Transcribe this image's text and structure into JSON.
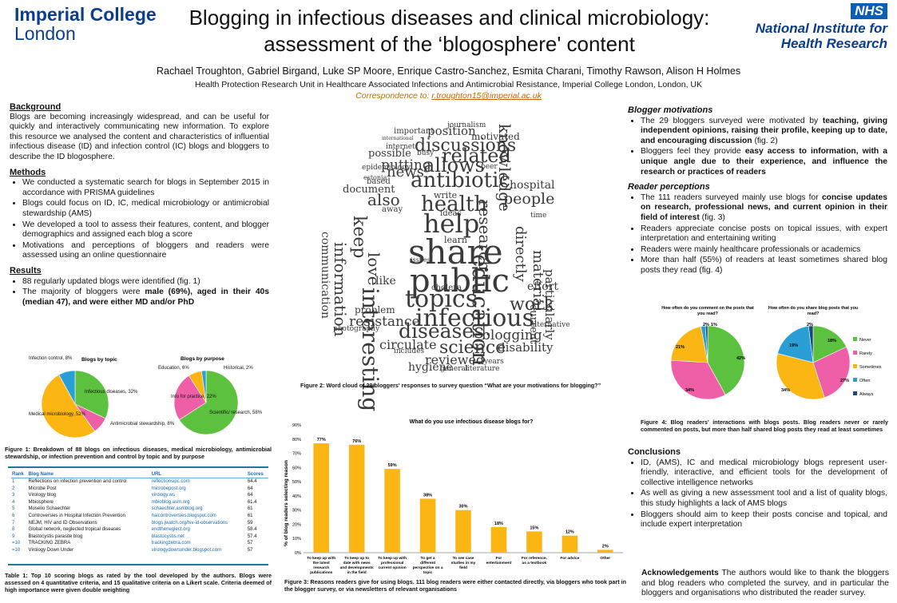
{
  "header": {
    "ic_line1": "Imperial College",
    "ic_line2": "London",
    "title_line1": "Blogging in infectious diseases and clinical microbiology:",
    "title_line2": "assessment of the ‘blogosphere' content",
    "nhs": "NHS",
    "nihr_line1": "National Institute for",
    "nihr_line2": "Health Research",
    "authors": "Rachael Troughton, Gabriel Birgand, Luke SP Moore, Enrique Castro-Sanchez, Esmita Charani, Timothy Rawson, Alison H Holmes",
    "affiliation": "Health Protection Research Unit in Healthcare Associated Infections and Antimicrobial Resistance, Imperial College London, London, UK",
    "corr_label": "Correspondence to: ",
    "corr_email": "r.troughton15@imperial.ac.uk"
  },
  "left": {
    "background_h": "Background",
    "background_p": "Blogs are becoming increasingly widespread, and can be useful for quickly and interactively communicating new information. To explore this resource we analysed the content and characteristics of influential infectious disease (ID) and infection control (IC) blogs and bloggers to describe the ID blogosphere.",
    "methods_h": "Methods",
    "methods": [
      "We conducted a systematic search for blogs in September 2015 in accordance with PRISMA guidelines",
      "Blogs could focus on ID, IC, medical microbiology or antimicrobial stewardship (AMS)",
      "We developed a tool to assess their features, content, and blogger demographics and assigned each blog a score",
      "Motivations and perceptions of bloggers and readers were assessed using an online questionnaire"
    ],
    "results_h": "Results",
    "results1": "88 regularly updated blogs were identified (fig. 1)",
    "results2_a": "The majority of bloggers were ",
    "results2_b": "male (69%), aged in their 40s (median 47), and were either MD and/or PhD"
  },
  "fig1": {
    "topic_title": "Blogs by topic",
    "purpose_title": "Blogs by purpose",
    "topic_labels": [
      "Infection control, 8%",
      "Infectious diseases, 32%",
      "Antimicrobial stewardship, 8%",
      "Medical microbiology, 52%"
    ],
    "purpose_labels": [
      "Education, 6%",
      "Historical, 2%",
      "Info for practice, 22%",
      "Scientific/ research, 58%"
    ],
    "caption": "Figure 1: Breakdown of 88 blogs on infectious diseases, medical microbiology, antimicrobial stewardship, or infection prevention and control by topic and by purpose"
  },
  "table1": {
    "headers": [
      "Rank",
      "Blog Name",
      "URL",
      "Scores"
    ],
    "rows": [
      [
        "1",
        "Reflections on infection prevention and control",
        "reflectionsipc.com",
        "64.4"
      ],
      [
        "2",
        "Microbe Post",
        "microbepost.org",
        "64"
      ],
      [
        "3",
        "Virology blog",
        "virology.ws",
        "64"
      ],
      [
        "4",
        "Mbiosphere",
        "mbioblog.asm.org",
        "61.4"
      ],
      [
        "5",
        "Moselio Schaechter",
        "schaechter.asmblog.org",
        "61"
      ],
      [
        "6",
        "Controversies in Hospital Infection Prevention",
        "haicontroversies.blogspot.com",
        "61"
      ],
      [
        "7",
        "NEJM, HIV and ID Observations",
        "blogs.jwatch.org/hiv-id-observations",
        "59"
      ],
      [
        "8",
        "Global network, neglected tropical diseases",
        "endtheneglect.org",
        "58.4"
      ],
      [
        "9",
        "Blastocystis parasite blog",
        "blastocystis.net",
        "57.4"
      ],
      [
        "=10",
        "TRACKING ZEBRA",
        "trackingzebra.com",
        "57"
      ],
      [
        "=10",
        "Virology Down Under",
        "virologydownunder.blogspot.com",
        "57"
      ]
    ],
    "caption": "Table 1: Top 10 scoring blogs as rated by the tool developed by the authors. Blogs were assessed on 4 quantitative criteria, and 15 qualitative criteria on a Likert scale. Criteria deemed of high importance were given double weighting"
  },
  "wordcloud": {
    "caption": "Figure 2: Word cloud of 29 bloggers' responses to survey question  “What are your motivations for blogging?”",
    "words": [
      [
        "journalism",
        560,
        153,
        9,
        0
      ],
      [
        "important",
        493,
        160,
        10,
        0
      ],
      [
        "position",
        535,
        157,
        15,
        0
      ],
      [
        "international",
        478,
        171,
        6,
        0
      ],
      [
        "motivated",
        590,
        165,
        12,
        0
      ],
      [
        "discussions",
        519,
        172,
        22,
        0
      ],
      [
        "internet",
        483,
        180,
        9,
        0
      ],
      [
        "busy",
        522,
        188,
        9,
        0
      ],
      [
        "related",
        553,
        183,
        24,
        0
      ],
      [
        "possible",
        461,
        186,
        13,
        0
      ],
      [
        "knowledge",
        642,
        155,
        20,
        90
      ],
      [
        "putting",
        477,
        199,
        17,
        0
      ],
      [
        "allows",
        530,
        195,
        24,
        0
      ],
      [
        "epidemiology",
        453,
        206,
        9,
        0
      ],
      [
        "news",
        484,
        207,
        18,
        0
      ],
      [
        "peer",
        602,
        205,
        9,
        0
      ],
      [
        "estonia",
        455,
        219,
        8,
        0
      ],
      [
        "antibiotic",
        514,
        213,
        26,
        0
      ],
      [
        "hospital",
        638,
        225,
        14,
        0
      ],
      [
        "document",
        429,
        231,
        13,
        0
      ],
      [
        "based",
        459,
        223,
        10,
        0
      ],
      [
        "also",
        460,
        240,
        20,
        0
      ],
      [
        "write",
        543,
        239,
        11,
        0
      ],
      [
        "health",
        527,
        243,
        26,
        0
      ],
      [
        "people",
        630,
        240,
        19,
        0
      ],
      [
        "away",
        478,
        258,
        10,
        0
      ],
      [
        "ideas",
        551,
        263,
        10,
        0
      ],
      [
        "help",
        530,
        264,
        32,
        0
      ],
      [
        "keep",
        460,
        270,
        22,
        90
      ],
      [
        "learn",
        556,
        295,
        11,
        0
      ],
      [
        "share",
        511,
        295,
        42,
        0
      ],
      [
        "research",
        617,
        250,
        20,
        90
      ],
      [
        "time",
        664,
        266,
        9,
        0
      ],
      [
        "love",
        478,
        316,
        20,
        90
      ],
      [
        "information",
        436,
        303,
        20,
        90
      ],
      [
        "directly",
        660,
        283,
        18,
        90
      ],
      [
        "material",
        682,
        313,
        18,
        90
      ],
      [
        "communication",
        414,
        290,
        14,
        90
      ],
      [
        "public",
        513,
        332,
        40,
        0
      ],
      [
        "education",
        615,
        318,
        28,
        90
      ],
      [
        "issues",
        514,
        322,
        8,
        0
      ],
      [
        "like",
        470,
        345,
        14,
        0
      ],
      [
        "particularly",
        695,
        337,
        15,
        90
      ],
      [
        "effort",
        660,
        352,
        14,
        0
      ],
      [
        "interesting",
        477,
        360,
        28,
        90
      ],
      [
        "topics",
        507,
        360,
        30,
        0
      ],
      [
        "cholera",
        540,
        356,
        10,
        0
      ],
      [
        "work",
        638,
        371,
        22,
        0
      ],
      [
        "problem",
        444,
        382,
        12,
        0
      ],
      [
        "current",
        674,
        381,
        13,
        90
      ],
      [
        "infectious",
        520,
        384,
        30,
        0
      ],
      [
        "resistance",
        437,
        395,
        17,
        0
      ],
      [
        "photography",
        417,
        408,
        9,
        0
      ],
      [
        "diseases",
        499,
        402,
        25,
        0
      ],
      [
        "alternative",
        664,
        403,
        9,
        0
      ],
      [
        "blogging",
        603,
        412,
        17,
        0
      ],
      [
        "circulate",
        475,
        424,
        16,
        0
      ],
      [
        "science",
        550,
        425,
        22,
        0
      ],
      [
        "disability",
        623,
        428,
        15,
        0
      ],
      [
        "includes",
        493,
        436,
        9,
        0
      ],
      [
        "reviewed",
        532,
        443,
        16,
        0
      ],
      [
        "hygiene",
        511,
        453,
        14,
        0
      ],
      [
        "general",
        551,
        458,
        9,
        0
      ],
      [
        "literature",
        582,
        458,
        9,
        0
      ],
      [
        "years",
        606,
        449,
        9,
        0
      ]
    ]
  },
  "fig3": {
    "title": "What do you use infectious disease blogs for?",
    "ylabel": "% of blog readers selecting reason",
    "caption": "Figure 3: Reasons readers give for using blogs. 111 blog readers were either contacted directly, via bloggers who took part in the blogger survey, or via newsletters of relevant organisations"
  },
  "chart_data": [
    {
      "type": "pie",
      "title": "Blogs by topic",
      "categories": [
        "Infectious diseases",
        "Antimicrobial stewardship",
        "Medical microbiology",
        "Infection control"
      ],
      "values": [
        32,
        8,
        52,
        8
      ],
      "colors": [
        "#5cc13f",
        "#ef5fa7",
        "#fbb614",
        "#2a9fd6"
      ]
    },
    {
      "type": "pie",
      "title": "Blogs by purpose",
      "categories": [
        "Scientific/ research",
        "Info for practice",
        "Education",
        "Historical"
      ],
      "values": [
        58,
        22,
        6,
        2
      ],
      "colors": [
        "#5cc13f",
        "#ef5fa7",
        "#fbb614",
        "#2a9fd6"
      ]
    },
    {
      "type": "bar",
      "title": "What do you use infectious disease blogs for?",
      "ylabel": "% of blog readers selecting reason",
      "ylim": [
        0,
        90
      ],
      "yticks": [
        "0%",
        "10%",
        "20%",
        "30%",
        "40%",
        "50%",
        "60%",
        "70%",
        "80%",
        "90%"
      ],
      "categories": [
        "To keep up with the latest research publications",
        "To keep up to date with news and developments in the field",
        "To keep up with professional current opinion",
        "To get a different perspective on a topic",
        "To see case studies in my field",
        "For entertainment",
        "For reference, as a textbook",
        "For advice",
        "Other"
      ],
      "values": [
        77,
        76,
        59,
        38,
        30,
        18,
        15,
        12,
        2
      ],
      "value_labels": [
        "77%",
        "76%",
        "59%",
        "38%",
        "30%",
        "18%",
        "15%",
        "12%",
        "2%"
      ],
      "color": "#fbb614"
    },
    {
      "type": "pie",
      "title": "How often do you comment on the posts that you read?",
      "categories": [
        "Never",
        "Rarely",
        "Sometimes",
        "Often",
        "Always"
      ],
      "values": [
        42,
        34,
        21,
        2,
        1
      ],
      "colors": [
        "#5cc13f",
        "#ef5fa7",
        "#fbb614",
        "#2a9fd6",
        "#1a4a7a"
      ]
    },
    {
      "type": "pie",
      "title": "How often do you share blog posts that you read?",
      "categories": [
        "Never",
        "Rarely",
        "Sometimes",
        "Often",
        "Always"
      ],
      "values": [
        18,
        27,
        34,
        19,
        2
      ],
      "colors": [
        "#5cc13f",
        "#ef5fa7",
        "#fbb614",
        "#2a9fd6",
        "#1a4a7a"
      ]
    }
  ],
  "fig4": {
    "title1": "How often do you comment on the posts that you read?",
    "title2": "How often do you share blog posts that you read?",
    "labels1": [
      "42%",
      "34%",
      "21%",
      "2%",
      "1%"
    ],
    "labels2": [
      "18%",
      "27%",
      "34%",
      "19%",
      "2%"
    ],
    "legend": [
      "Never",
      "Rarely",
      "Sometimes",
      "Often",
      "Always"
    ],
    "caption": "Figure 4: Blog readers' interactions with blogs posts. Blog readers never or rarely commented on posts, but more than half shared blog posts they read at least sometimes"
  },
  "right": {
    "motiv_h": "Blogger motivations",
    "motiv1_a": "The 29 bloggers surveyed were motivated by ",
    "motiv1_b": "teaching, giving independent opinions, raising their profile, keeping up to date, and encouraging discussion",
    "motiv1_c": " (fig. 2)",
    "motiv2_a": "Bloggers feel they provide ",
    "motiv2_b": "easy access to information, with a unique angle due to their experience, and influence the research or practices of readers",
    "reader_h": "Reader perceptions",
    "reader1_a": "The 111 readers surveyed mainly use blogs for ",
    "reader1_b": "concise updates on research, professional news, and current opinion in their field of interest",
    "reader1_c": " (fig. 3)",
    "reader2": "Readers appreciate concise posts on topical issues, with expert interpretation and entertaining writing",
    "reader3": "Readers were mainly healthcare professionals or academics",
    "reader4": "More than half (55%) of readers at least sometimes shared blog posts they read (fig. 4)",
    "concl_h": "Conclusions",
    "concl": [
      "ID, (AMS), IC and medical microbiology blogs represent user-friendly, interactive, and efficient tools for the development of collective intelligence networks",
      "As well as giving a new assessment tool and a list of quality blogs, this study highlights a lack of AMS blogs",
      "Bloggers should aim to keep their posts concise and topical, and include expert interpretation"
    ],
    "ack_h": "Acknowledgements",
    "ack": " The authors would like to thank the bloggers and blog readers who completed the survey, and in particular the bloggers and organisations who distributed the reader survey."
  }
}
